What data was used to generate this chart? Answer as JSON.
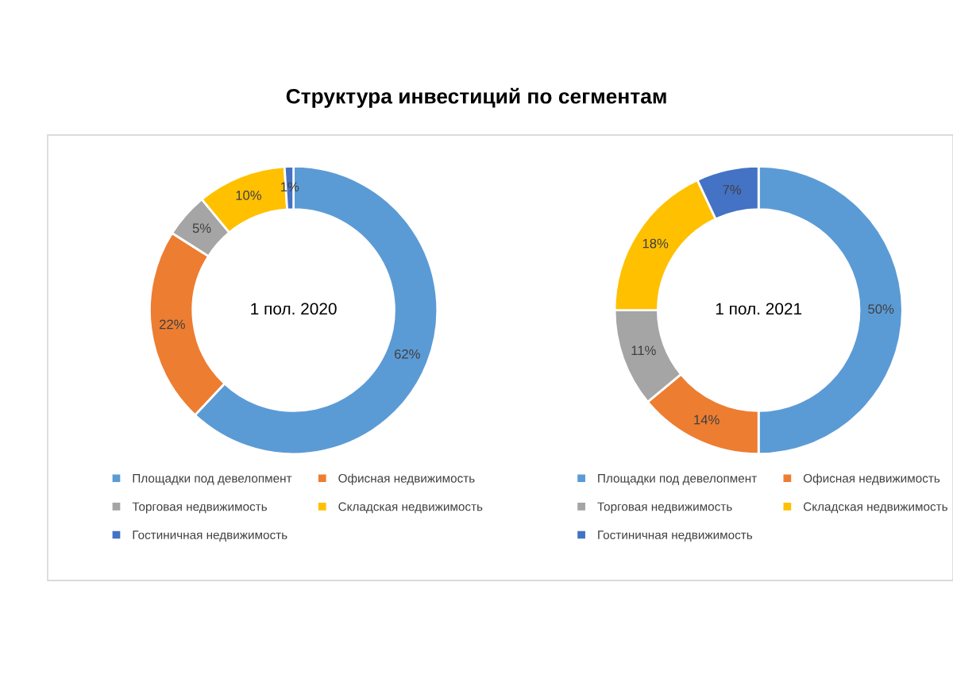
{
  "chart_data": [
    {
      "type": "donut",
      "title": "Структура инвестиций по сегментам",
      "annotations": [
        "1 пол. 2020"
      ],
      "categories": [
        "Площадки под девелопмент",
        "Офисная недвижимость",
        "Торговая недвижимость",
        "Складская недвижимость",
        "Гостиничная недвижимость"
      ],
      "values": [
        62,
        22,
        5,
        10,
        1
      ],
      "value_labels": [
        "62%",
        "22%",
        "5%",
        "10%",
        "1%"
      ],
      "colors": [
        "#5b9bd5",
        "#ed7d31",
        "#a5a5a5",
        "#ffc000",
        "#4472c4"
      ],
      "legend": "bottom"
    },
    {
      "type": "donut",
      "annotations": [
        "1 пол. 2021"
      ],
      "categories": [
        "Площадки под девелопмент",
        "Офисная недвижимость",
        "Торговая недвижимость",
        "Складская недвижимость",
        "Гостиничная недвижимость"
      ],
      "values": [
        50,
        14,
        11,
        18,
        7
      ],
      "value_labels": [
        "50%",
        "14%",
        "11%",
        "18%",
        "7%"
      ],
      "colors": [
        "#5b9bd5",
        "#ed7d31",
        "#a5a5a5",
        "#ffc000",
        "#4472c4"
      ],
      "legend": "bottom"
    }
  ]
}
